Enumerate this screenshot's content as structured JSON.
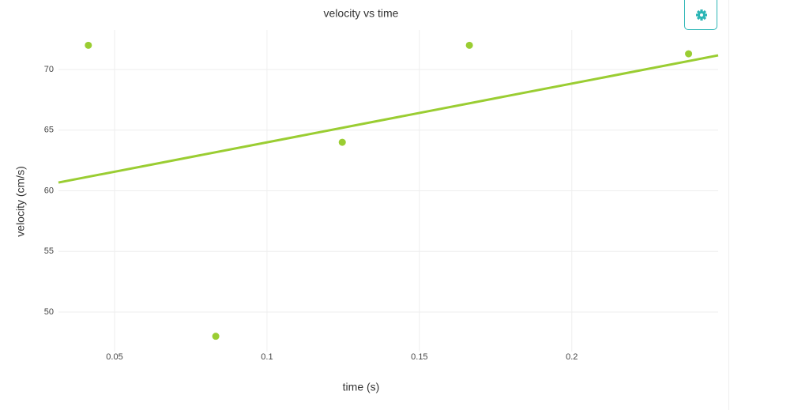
{
  "chart_data": {
    "type": "scatter",
    "title": "velocity vs time",
    "x_label": "time (s)",
    "y_label": "velocity (cm/s)",
    "points": {
      "color": "#9acd32",
      "x": [
        0.0414,
        0.0832,
        0.1247,
        0.1664,
        0.2383
      ],
      "y": [
        72.0,
        48.0,
        64.0,
        72.0,
        71.3
      ]
    },
    "fit_line": {
      "color": "#9acd32",
      "x": [
        0.0316,
        0.248
      ],
      "y": [
        60.68,
        71.17
      ]
    },
    "xlim": [
      0.0316,
      0.248
    ],
    "ylim": [
      46.74,
      73.26
    ],
    "xticks": [
      0.05,
      0.1,
      0.15,
      0.2
    ],
    "yticks": [
      50,
      55,
      60,
      65,
      70
    ],
    "grid": true
  }
}
